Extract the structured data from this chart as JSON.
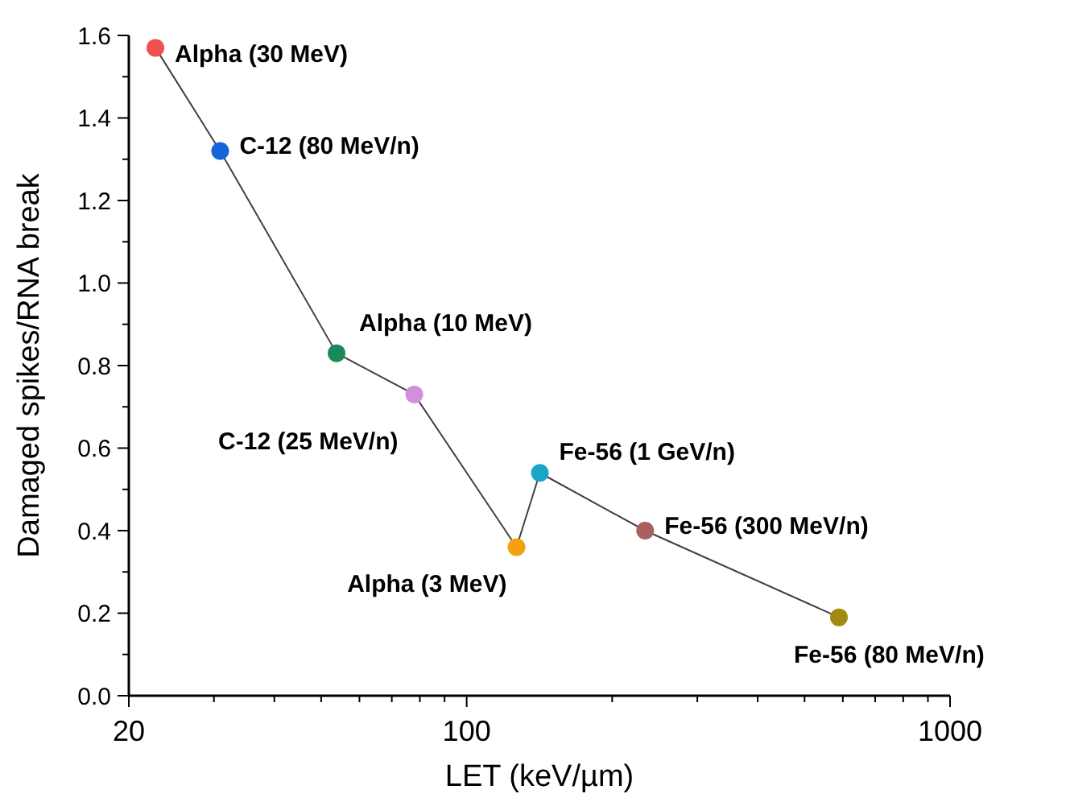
{
  "chart_data": {
    "type": "line",
    "xlabel": "LET (keV/µm)",
    "ylabel": "Damaged spikes/RNA break",
    "log": "x",
    "marker": "circle",
    "line_style": "solid",
    "grid": false,
    "xlim": [
      20,
      1000
    ],
    "xticks": [
      20,
      {
        "value": 30,
        "label": null
      },
      {
        "value": 40,
        "label": null
      },
      {
        "value": 50,
        "label": null
      },
      {
        "value": 60,
        "label": null
      },
      {
        "value": 70,
        "label": null
      },
      {
        "value": 80,
        "label": null
      },
      {
        "value": 90,
        "label": null
      },
      100,
      {
        "value": 200,
        "label": null
      },
      {
        "value": 300,
        "label": null
      },
      {
        "value": 400,
        "label": null
      },
      {
        "value": 500,
        "label": null
      },
      {
        "value": 600,
        "label": null
      },
      {
        "value": 700,
        "label": null
      },
      {
        "value": 800,
        "label": null
      },
      {
        "value": 900,
        "label": null
      },
      1000
    ],
    "ylim": [
      0,
      1.6
    ],
    "yticks": [
      {
        "value": 0,
        "label": "0.0"
      },
      {
        "value": 0.1,
        "label": null
      },
      {
        "value": 0.2,
        "label": "0.2"
      },
      {
        "value": 0.3,
        "label": null
      },
      {
        "value": 0.4,
        "label": "0.4"
      },
      {
        "value": 0.5,
        "label": null
      },
      {
        "value": 0.6,
        "label": "0.6"
      },
      {
        "value": 0.7,
        "label": null
      },
      {
        "value": 0.8,
        "label": "0.8"
      },
      {
        "value": 0.9,
        "label": null
      },
      {
        "value": 1.0,
        "label": "1.0"
      },
      {
        "value": 1.1,
        "label": null
      },
      {
        "value": 1.2,
        "label": "1.2"
      },
      {
        "value": 1.3,
        "label": null
      },
      {
        "value": 1.4,
        "label": "1.4"
      },
      {
        "value": 1.5,
        "label": null
      },
      {
        "value": 1.6,
        "label": "1.6"
      }
    ],
    "series": [
      {
        "color": "#404040",
        "x": [
          22.7,
          30.9,
          53.8,
          77.9,
          126.8,
          141.7,
          234,
          589
        ],
        "values": [
          1.57,
          1.32,
          0.83,
          0.73,
          0.36,
          0.54,
          0.4,
          0.19
        ],
        "colors": [
          "#f0514a",
          "#1565d8",
          "#1b8a5a",
          "#d48fdc",
          "#f5a00f",
          "#1aa5c8",
          "#a85f5f",
          "#a08a10"
        ]
      }
    ],
    "annotations": [
      {
        "text": "Alpha (30 MeV)",
        "x": 22.7,
        "y": 1.57
      },
      {
        "text": "C-12 (80 MeV/n)",
        "x": 30.9,
        "y": 1.32
      },
      {
        "text": "Alpha (10 MeV)",
        "x": 53.8,
        "y": 0.83
      },
      {
        "text": "C-12 (25 MeV/n)",
        "x": 77.9,
        "y": 0.73
      },
      {
        "text": "Alpha (3 MeV)",
        "x": 126.8,
        "y": 0.36
      },
      {
        "text": "Fe-56 (1 GeV/n)",
        "x": 141.7,
        "y": 0.54
      },
      {
        "text": "Fe-56 (300 MeV/n)",
        "x": 234,
        "y": 0.4
      },
      {
        "text": "Fe-56 (80 MeV/n)",
        "x": 589,
        "y": 0.19
      }
    ]
  }
}
